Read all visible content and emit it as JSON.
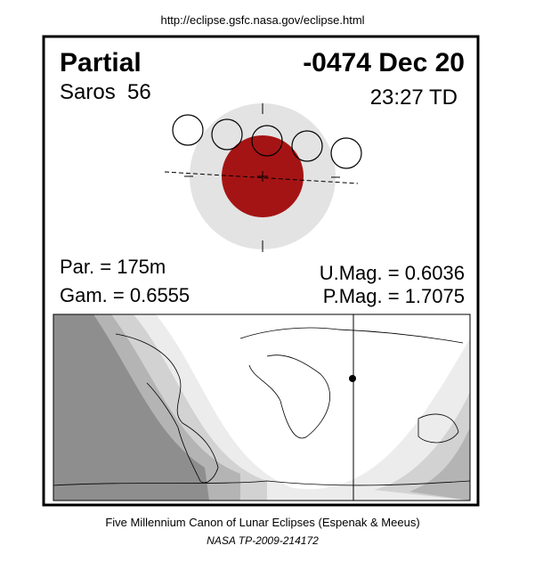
{
  "header": {
    "url": "http://eclipse.gsfc.nasa.gov/eclipse.html"
  },
  "eclipse": {
    "type": "Partial",
    "date": "-0474 Dec 20",
    "saros": "Saros  56",
    "time": "23:27 TD",
    "par": "Par. = 175m",
    "gam": "Gam. = 0.6555",
    "umag": "U.Mag. = 0.6036",
    "pmag": "P.Mag. = 1.7075"
  },
  "footer": {
    "line1": "Five Millennium Canon of Lunar Eclipses (Espenak & Meeus)",
    "line2": "NASA TP-2009-214172"
  }
}
